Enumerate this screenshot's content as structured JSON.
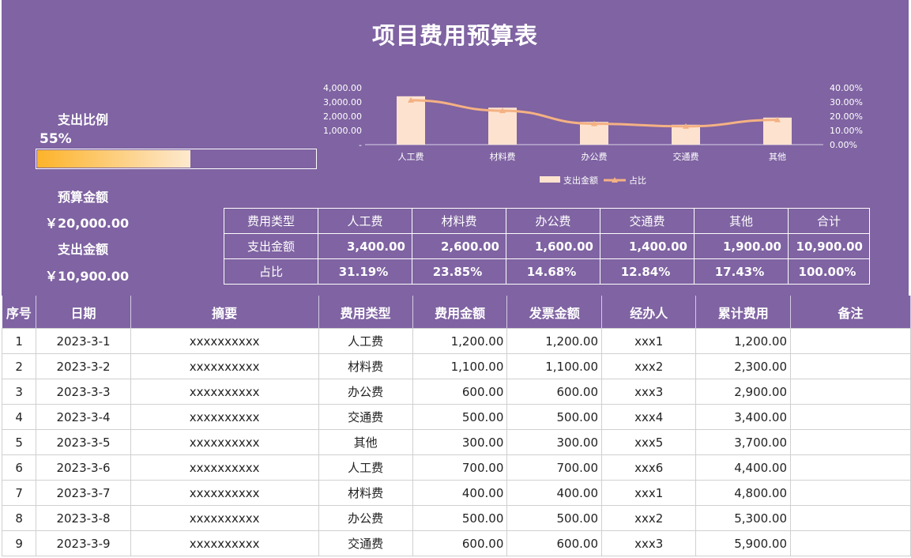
{
  "title": "项目费用预算表",
  "left_panel": {
    "ratio_label": "支出比例",
    "ratio_value": "55%",
    "ratio_fraction": 0.55,
    "budget_label": "预算金额",
    "budget_value": "￥20,000.00",
    "spend_label": "支出金额",
    "spend_value": "￥10,900.00"
  },
  "colors": {
    "header_bg": "#7f63a2",
    "bar_color": "#fde3cf",
    "line_color": "#f4b183",
    "progress_start": "#fdb32a",
    "progress_end": "#fde9cf"
  },
  "chart_data": {
    "type": "bar",
    "categories": [
      "人工费",
      "材料费",
      "办公费",
      "交通费",
      "其他"
    ],
    "series": [
      {
        "name": "支出金额",
        "type": "bar",
        "axis": "left",
        "values": [
          3400,
          2600,
          1600,
          1400,
          1900
        ]
      },
      {
        "name": "占比",
        "type": "line",
        "axis": "right",
        "values": [
          31.19,
          23.85,
          14.68,
          12.84,
          17.43
        ]
      }
    ],
    "y_left": {
      "ticks": [
        "4,000.00",
        "3,000.00",
        "2,000.00",
        "1,000.00",
        "-"
      ],
      "ylim": [
        0,
        4000
      ]
    },
    "y_right": {
      "ticks": [
        "40.00%",
        "30.00%",
        "20.00%",
        "10.00%",
        "0.00%"
      ],
      "ylim": [
        0,
        40
      ]
    },
    "legend": [
      "支出金额",
      "占比"
    ],
    "legend_position": "bottom",
    "grid": false
  },
  "summary": {
    "headers": [
      "费用类型",
      "人工费",
      "材料费",
      "办公费",
      "交通费",
      "其他",
      "合计"
    ],
    "rows": [
      [
        "支出金额",
        "3,400.00",
        "2,600.00",
        "1,600.00",
        "1,400.00",
        "1,900.00",
        "10,900.00"
      ],
      [
        "占比",
        "31.19%",
        "23.85%",
        "14.68%",
        "12.84%",
        "17.43%",
        "100.00%"
      ]
    ]
  },
  "table": {
    "headers": [
      "序号",
      "日期",
      "摘要",
      "费用类型",
      "费用金额",
      "发票金额",
      "经办人",
      "累计费用",
      "备注"
    ],
    "rows": [
      [
        "1",
        "2023-3-1",
        "xxxxxxxxxx",
        "人工费",
        "1,200.00",
        "1,200.00",
        "xxx1",
        "1,200.00",
        ""
      ],
      [
        "2",
        "2023-3-2",
        "xxxxxxxxxx",
        "材料费",
        "1,100.00",
        "1,100.00",
        "xxx2",
        "2,300.00",
        ""
      ],
      [
        "3",
        "2023-3-3",
        "xxxxxxxxxx",
        "办公费",
        "600.00",
        "600.00",
        "xxx3",
        "2,900.00",
        ""
      ],
      [
        "4",
        "2023-3-4",
        "xxxxxxxxxx",
        "交通费",
        "500.00",
        "500.00",
        "xxx4",
        "3,400.00",
        ""
      ],
      [
        "5",
        "2023-3-5",
        "xxxxxxxxxx",
        "其他",
        "300.00",
        "300.00",
        "xxx5",
        "3,700.00",
        ""
      ],
      [
        "6",
        "2023-3-6",
        "xxxxxxxxxx",
        "人工费",
        "700.00",
        "700.00",
        "xxx6",
        "4,400.00",
        ""
      ],
      [
        "7",
        "2023-3-7",
        "xxxxxxxxxx",
        "材料费",
        "400.00",
        "400.00",
        "xxx1",
        "4,800.00",
        ""
      ],
      [
        "8",
        "2023-3-8",
        "xxxxxxxxxx",
        "办公费",
        "500.00",
        "500.00",
        "xxx2",
        "5,300.00",
        ""
      ],
      [
        "9",
        "2023-3-9",
        "xxxxxxxxxx",
        "交通费",
        "600.00",
        "600.00",
        "xxx3",
        "5,900.00",
        ""
      ]
    ]
  }
}
